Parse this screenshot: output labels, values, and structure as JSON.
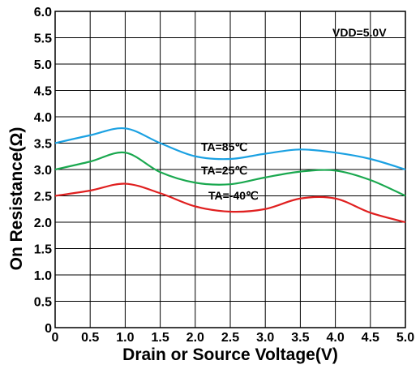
{
  "chart_data": {
    "type": "line",
    "xlabel": "Drain or Source Voltage(V)",
    "ylabel": "On Resistance(Ω)",
    "xlim": [
      0,
      5.0
    ],
    "ylim": [
      0,
      6.0
    ],
    "x_ticks": [
      "0",
      "0.5",
      "1.0",
      "1.5",
      "2.0",
      "2.5",
      "3.0",
      "3.5",
      "4.0",
      "4.5",
      "5.0"
    ],
    "y_ticks": [
      "0",
      "0.5",
      "1.0",
      "1.5",
      "2.0",
      "2.5",
      "3.0",
      "3.5",
      "4.0",
      "4.5",
      "5.0",
      "5.5",
      "6.0"
    ],
    "grid": true,
    "annotations": {
      "vdd": "VDD=5.0V",
      "ta85": "TA=85℃",
      "ta25": "TA=25℃",
      "ta_40": "TA=-40℃"
    },
    "series": [
      {
        "name": "TA=85℃",
        "color": "#1ba1e2",
        "x": [
          0,
          0.5,
          1.0,
          1.5,
          2.0,
          2.5,
          3.0,
          3.5,
          4.0,
          4.5,
          5.0
        ],
        "y": [
          3.5,
          3.65,
          3.78,
          3.5,
          3.25,
          3.2,
          3.3,
          3.38,
          3.32,
          3.2,
          3.0
        ]
      },
      {
        "name": "TA=25℃",
        "color": "#1aa84f",
        "x": [
          0,
          0.5,
          1.0,
          1.5,
          2.0,
          2.5,
          3.0,
          3.5,
          4.0,
          4.5,
          5.0
        ],
        "y": [
          3.0,
          3.15,
          3.32,
          2.95,
          2.75,
          2.72,
          2.85,
          2.96,
          2.98,
          2.8,
          2.5
        ]
      },
      {
        "name": "TA=-40℃",
        "color": "#e02020",
        "x": [
          0,
          0.5,
          1.0,
          1.5,
          2.0,
          2.5,
          3.0,
          3.5,
          4.0,
          4.5,
          5.0
        ],
        "y": [
          2.5,
          2.6,
          2.73,
          2.55,
          2.3,
          2.2,
          2.25,
          2.45,
          2.45,
          2.18,
          2.0
        ]
      }
    ]
  }
}
